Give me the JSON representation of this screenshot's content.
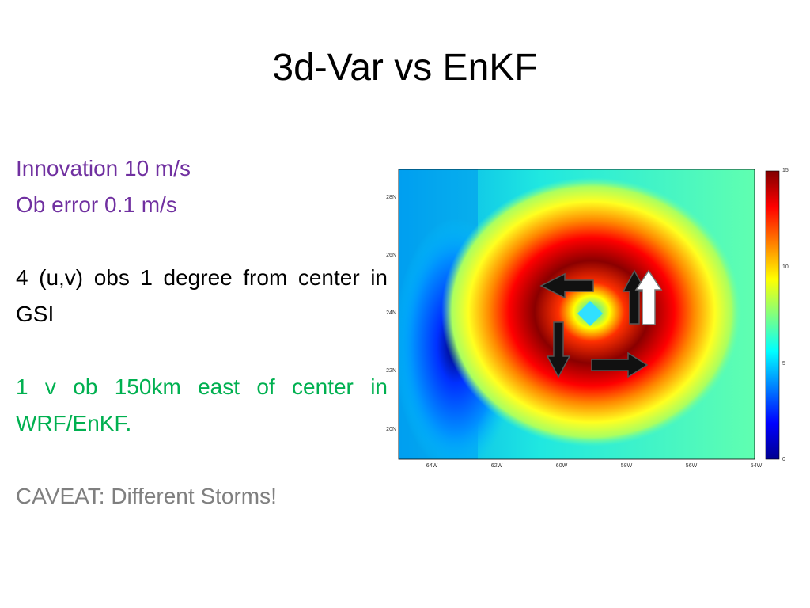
{
  "slide": {
    "title": "3d-Var vs EnKF"
  },
  "text": {
    "innovation": "Innovation 10 m/s",
    "ob_error": "Ob error 0.1 m/s",
    "obs_gsi": "4 (u,v) obs 1 degree from center in GSI",
    "wrf_enkf": "1 v ob 150km east of center in WRF/EnKF.",
    "caveat": "CAVEAT: Different Storms!"
  },
  "map": {
    "y_ticks": [
      "28N",
      "26N",
      "24N",
      "22N",
      "20N"
    ],
    "x_ticks": [
      "64W",
      "62W",
      "60W",
      "58W",
      "56W",
      "54W"
    ],
    "colorbar_ticks": [
      "15",
      "10",
      "5",
      "0"
    ],
    "colormap": [
      "#00008f",
      "#0000ff",
      "#0080ff",
      "#00ffff",
      "#80ff80",
      "#ffff00",
      "#ff8000",
      "#ff0000",
      "#800000"
    ],
    "arrows": [
      {
        "name": "gsi-arrow-west",
        "style": "black",
        "direction": "left"
      },
      {
        "name": "gsi-arrow-north",
        "style": "black",
        "direction": "up"
      },
      {
        "name": "gsi-arrow-south",
        "style": "black",
        "direction": "down"
      },
      {
        "name": "gsi-arrow-east",
        "style": "black",
        "direction": "right"
      },
      {
        "name": "enkf-arrow-north",
        "style": "white",
        "direction": "up"
      }
    ]
  }
}
